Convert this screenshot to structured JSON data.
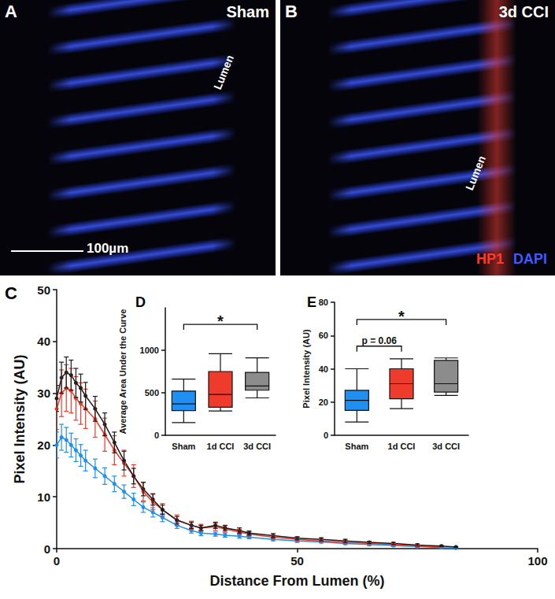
{
  "panels": [
    {
      "panel": "A",
      "title": "Sham",
      "annotation": "Lumen",
      "scale_bar": "100µm"
    },
    {
      "panel": "B",
      "title": "3d CCI",
      "annotation": "Lumen",
      "channels": [
        {
          "name": "HP1",
          "color": "#ff3a2e"
        },
        {
          "name": "DAPI",
          "color": "#3b5cff"
        }
      ]
    }
  ],
  "chart_data": [
    {
      "panel": "C",
      "type": "line",
      "x_label": "Distance From Lumen (%)",
      "y_label": "Pixel Intensity (AU)",
      "xlim": [
        0,
        100
      ],
      "xticks": [
        0,
        50,
        100
      ],
      "ylim": [
        0,
        50
      ],
      "yticks": [
        0,
        10,
        20,
        30,
        40,
        50
      ],
      "grid": false,
      "marker": "circle",
      "x": [
        0,
        1,
        2,
        3,
        4,
        5,
        6,
        8,
        10,
        12,
        14,
        16,
        18,
        20,
        22,
        25,
        28,
        30,
        33,
        35,
        38,
        40,
        45,
        50,
        55,
        60,
        65,
        70,
        75,
        80,
        83
      ],
      "series": [
        {
          "name": "Sham",
          "color": "#1f8ff2",
          "values": [
            20,
            21.5,
            21,
            20,
            19,
            18,
            17,
            15.5,
            14,
            12.5,
            11,
            9.5,
            8,
            7,
            6,
            4.5,
            3.5,
            3,
            2.8,
            2.6,
            2.4,
            2.2,
            1.8,
            1.5,
            1.3,
            1,
            0.8,
            0.6,
            0.4,
            0.2,
            0.1
          ],
          "errors": [
            2.5,
            2.5,
            2.4,
            2.3,
            2.2,
            2.1,
            2,
            1.8,
            1.6,
            1.5,
            1.3,
            1.2,
            1,
            0.9,
            0.8,
            0.6,
            0.5,
            0.5,
            0.4,
            0.4,
            0.4,
            0.3,
            0.3,
            0.3,
            0.2,
            0.2,
            0.2,
            0.2,
            0.1,
            0.1,
            0.1
          ]
        },
        {
          "name": "1d CCI",
          "color": "#ee3b2b",
          "values": [
            27,
            30,
            31,
            30.5,
            29,
            28,
            27,
            25,
            22,
            19,
            16.5,
            14,
            11,
            9,
            7.5,
            5.5,
            4.5,
            4,
            4.2,
            3.8,
            3.2,
            2.8,
            2.2,
            1.8,
            1.5,
            1.2,
            1,
            0.8,
            0.5,
            0.3,
            null
          ],
          "errors": [
            4,
            4.5,
            4.5,
            4.3,
            4.2,
            4,
            3.8,
            3.5,
            3.2,
            2.8,
            2.5,
            2.2,
            1.8,
            1.5,
            1.2,
            1,
            0.8,
            0.7,
            0.7,
            0.6,
            0.5,
            0.5,
            0.4,
            0.4,
            0.3,
            0.3,
            0.2,
            0.2,
            0.2,
            0.1,
            null
          ]
        },
        {
          "name": "3d CCI",
          "color": "#1a1a1a",
          "values": [
            29,
            33,
            34,
            33.5,
            32,
            31,
            29.5,
            27,
            24,
            20.5,
            17,
            14,
            11.5,
            9.5,
            7.5,
            5.5,
            4.5,
            4,
            4.5,
            4,
            3.5,
            3,
            2.5,
            2,
            1.8,
            1.5,
            1.2,
            1,
            0.7,
            0.5,
            0.3
          ],
          "errors": [
            2.5,
            3,
            3,
            2.9,
            2.8,
            2.7,
            2.6,
            2.4,
            2.2,
            2,
            1.8,
            1.5,
            1.3,
            1.1,
            0.9,
            0.7,
            0.6,
            0.5,
            0.6,
            0.5,
            0.5,
            0.4,
            0.4,
            0.3,
            0.3,
            0.3,
            0.2,
            0.2,
            0.2,
            0.1,
            0.1
          ]
        }
      ]
    },
    {
      "panel": "D",
      "type": "boxplot",
      "y_label": "Average Area Under the Curve",
      "categories": [
        "Sham",
        "1d CCI",
        "3d CCI"
      ],
      "ylim": [
        0,
        1500
      ],
      "yticks": [
        0,
        500,
        1000
      ],
      "grid": false,
      "colors": [
        "#1f8ff2",
        "#ee3b2b",
        "#8c8c8c"
      ],
      "values": [
        [
          150,
          290,
          370,
          520,
          660
        ],
        [
          285,
          330,
          480,
          750,
          960
        ],
        [
          440,
          530,
          580,
          740,
          910
        ]
      ],
      "annotations": [
        {
          "from": "Sham",
          "to": "3d CCI",
          "label": "*"
        }
      ]
    },
    {
      "panel": "E",
      "type": "boxplot",
      "y_label": "Pixel Intensity (AU)",
      "categories": [
        "Sham",
        "1d CCI",
        "3d CCI"
      ],
      "ylim": [
        0,
        80
      ],
      "yticks": [
        0,
        20,
        40,
        60,
        80
      ],
      "grid": false,
      "colors": [
        "#1f8ff2",
        "#ee3b2b",
        "#8c8c8c"
      ],
      "values": [
        [
          8,
          15,
          21,
          27,
          40
        ],
        [
          16,
          22,
          31,
          40,
          46
        ],
        [
          24,
          26,
          31,
          45,
          46.5
        ]
      ],
      "annotations": [
        {
          "from": "Sham",
          "to": "1d CCI",
          "label": "p = 0.06"
        },
        {
          "from": "Sham",
          "to": "3d CCI",
          "label": "*"
        }
      ]
    }
  ]
}
